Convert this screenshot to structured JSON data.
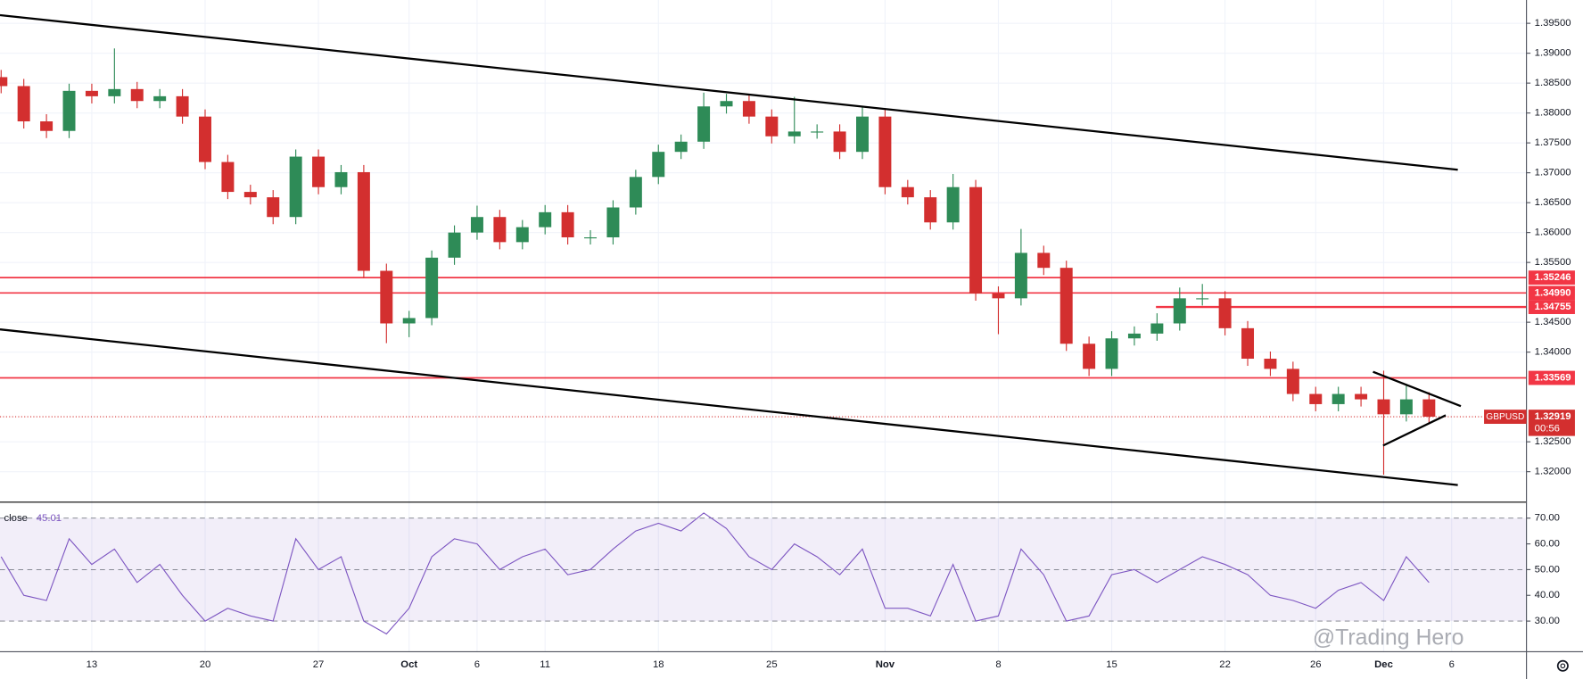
{
  "chart_data": {
    "type": "candlestick",
    "symbol": "GBPUSD",
    "up_color": "#2e8b57",
    "down_color": "#d32f2f",
    "x": [
      -4,
      -3,
      -2,
      -1,
      0,
      1,
      2,
      3,
      4,
      5,
      6,
      7,
      8,
      9,
      10,
      11,
      12,
      13,
      14,
      15,
      16,
      17,
      18,
      19,
      20,
      21,
      22,
      23,
      24,
      25,
      26,
      27,
      28,
      29,
      30,
      31,
      32,
      33,
      34,
      35,
      36,
      37,
      38,
      39,
      40,
      41,
      42,
      43,
      44,
      45,
      46,
      47,
      48,
      49,
      50,
      51,
      52,
      53,
      54,
      55,
      56,
      57,
      58,
      59
    ],
    "open": [
      1.386,
      1.3845,
      1.3786,
      1.377,
      1.3837,
      1.3828,
      1.384,
      1.382,
      1.3828,
      1.3794,
      1.3718,
      1.3668,
      1.3659,
      1.3626,
      1.3727,
      1.3676,
      1.3701,
      1.3536,
      1.3448,
      1.3457,
      1.3558,
      1.36,
      1.3626,
      1.3584,
      1.3609,
      1.3634,
      1.3592,
      1.3592,
      1.3642,
      1.3693,
      1.3735,
      1.3752,
      1.3811,
      1.382,
      1.3794,
      1.3761,
      1.3769,
      1.3769,
      1.3735,
      1.3794,
      1.3676,
      1.3659,
      1.3617,
      1.3676,
      1.3498,
      1.349,
      1.3566,
      1.3541,
      1.3414,
      1.3372,
      1.3423,
      1.3431,
      1.3448,
      1.349,
      1.349,
      1.344,
      1.3389,
      1.3372,
      1.333,
      1.3313,
      1.333,
      1.3321,
      1.3296,
      1.3321
    ],
    "high": [
      1.3872,
      1.3857,
      1.3798,
      1.3849,
      1.3849,
      1.3908,
      1.3852,
      1.384,
      1.384,
      1.3806,
      1.373,
      1.368,
      1.3671,
      1.3739,
      1.3739,
      1.3713,
      1.3713,
      1.3548,
      1.3469,
      1.357,
      1.3612,
      1.3645,
      1.3638,
      1.3621,
      1.3646,
      1.3646,
      1.3604,
      1.3654,
      1.3705,
      1.3747,
      1.3764,
      1.3834,
      1.3832,
      1.3832,
      1.3806,
      1.3827,
      1.3781,
      1.3781,
      1.381,
      1.3806,
      1.3688,
      1.3671,
      1.3698,
      1.3688,
      1.351,
      1.3606,
      1.3578,
      1.3553,
      1.3426,
      1.3435,
      1.3443,
      1.3465,
      1.3508,
      1.3514,
      1.3502,
      1.3452,
      1.3401,
      1.3384,
      1.3342,
      1.3342,
      1.3342,
      1.3369,
      1.3347,
      1.3333
    ],
    "low": [
      1.3833,
      1.3774,
      1.3758,
      1.3758,
      1.3816,
      1.3816,
      1.3808,
      1.3808,
      1.3782,
      1.3706,
      1.3656,
      1.3647,
      1.3614,
      1.3614,
      1.3664,
      1.3664,
      1.3524,
      1.3415,
      1.3425,
      1.3445,
      1.3546,
      1.3588,
      1.3572,
      1.3572,
      1.3597,
      1.358,
      1.358,
      1.358,
      1.363,
      1.3681,
      1.3723,
      1.374,
      1.3799,
      1.3782,
      1.3749,
      1.3749,
      1.3757,
      1.3723,
      1.3723,
      1.3664,
      1.3647,
      1.3605,
      1.3605,
      1.3486,
      1.343,
      1.3478,
      1.3529,
      1.3402,
      1.336,
      1.336,
      1.3411,
      1.3419,
      1.3436,
      1.3478,
      1.3428,
      1.3377,
      1.336,
      1.3318,
      1.3301,
      1.3301,
      1.3309,
      1.3195,
      1.3284,
      1.328
    ],
    "close": [
      1.3845,
      1.3786,
      1.377,
      1.3837,
      1.3828,
      1.384,
      1.382,
      1.3828,
      1.3794,
      1.3718,
      1.3668,
      1.3659,
      1.3626,
      1.3727,
      1.3676,
      1.3701,
      1.3536,
      1.3448,
      1.3457,
      1.3558,
      1.36,
      1.3626,
      1.3584,
      1.3609,
      1.3634,
      1.3592,
      1.3592,
      1.3642,
      1.3693,
      1.3735,
      1.3752,
      1.3811,
      1.382,
      1.3794,
      1.3761,
      1.3769,
      1.3769,
      1.3735,
      1.3794,
      1.3676,
      1.3659,
      1.3617,
      1.3676,
      1.3498,
      1.349,
      1.3566,
      1.3541,
      1.3414,
      1.3372,
      1.3423,
      1.3431,
      1.3448,
      1.349,
      1.349,
      1.344,
      1.3389,
      1.3372,
      1.333,
      1.3313,
      1.333,
      1.3321,
      1.3296,
      1.3321,
      1.3292
    ],
    "xlim": [
      -4.05,
      63.3
    ],
    "xticks": [
      {
        "value": 0,
        "label": "13"
      },
      {
        "value": 5,
        "label": "20"
      },
      {
        "value": 10,
        "label": "27"
      },
      {
        "value": 14,
        "label": "Oct"
      },
      {
        "value": 17,
        "label": "6"
      },
      {
        "value": 20,
        "label": "11"
      },
      {
        "value": 25,
        "label": "18"
      },
      {
        "value": 30,
        "label": "25"
      },
      {
        "value": 35,
        "label": "Nov"
      },
      {
        "value": 40,
        "label": "8"
      },
      {
        "value": 45,
        "label": "15"
      },
      {
        "value": 50,
        "label": "22"
      },
      {
        "value": 54,
        "label": "26"
      },
      {
        "value": 57,
        "label": "Dec"
      },
      {
        "value": 60,
        "label": "6"
      }
    ],
    "ylim": [
      1.3149,
      1.3989
    ],
    "yticks": [
      {
        "value": 1.395,
        "label": "1.39500"
      },
      {
        "value": 1.39,
        "label": "1.39000"
      },
      {
        "value": 1.385,
        "label": "1.38500"
      },
      {
        "value": 1.38,
        "label": "1.38000"
      },
      {
        "value": 1.375,
        "label": "1.37500"
      },
      {
        "value": 1.37,
        "label": "1.37000"
      },
      {
        "value": 1.365,
        "label": "1.36500"
      },
      {
        "value": 1.36,
        "label": "1.36000"
      },
      {
        "value": 1.355,
        "label": "1.35500"
      },
      {
        "value": 1.345,
        "label": "1.34500"
      },
      {
        "value": 1.34,
        "label": "1.34000"
      },
      {
        "value": 1.325,
        "label": "1.32500"
      },
      {
        "value": 1.32,
        "label": "1.32000"
      }
    ],
    "grid": true,
    "levels": [
      1.35246,
      {
        "value": 1.3499,
        "label": "1.34990"
      },
      1.34755,
      1.33569
    ],
    "level_color": "#f23645",
    "last": {
      "value": 1.32919,
      "countdown": "00:56"
    },
    "rsi": {
      "name": "close",
      "color": "#7e57c2",
      "values": [
        55,
        40,
        38,
        62,
        52,
        58,
        45,
        52,
        40,
        30,
        35,
        32,
        30,
        62,
        50,
        55,
        30,
        25,
        35,
        55,
        62,
        60,
        50,
        55,
        58,
        48,
        50,
        58,
        65,
        68,
        65,
        72,
        66,
        55,
        50,
        60,
        55,
        48,
        58,
        35,
        35,
        32,
        52,
        30,
        32,
        58,
        48,
        30,
        32,
        48,
        50,
        45,
        50,
        55,
        52,
        48,
        40,
        38,
        35,
        42,
        45,
        38,
        55,
        45.01
      ],
      "ylim": [
        18.1,
        76.2
      ],
      "yticks": [
        {
          "value": 70,
          "label": "70.00"
        },
        {
          "value": 60,
          "label": "60.00"
        },
        {
          "value": 50,
          "label": "50.00"
        },
        {
          "value": 40,
          "label": "40.00"
        },
        {
          "value": 30,
          "label": "30.00"
        }
      ],
      "guides": [
        70,
        50,
        30
      ]
    },
    "watermark": "@Trading Hero"
  }
}
